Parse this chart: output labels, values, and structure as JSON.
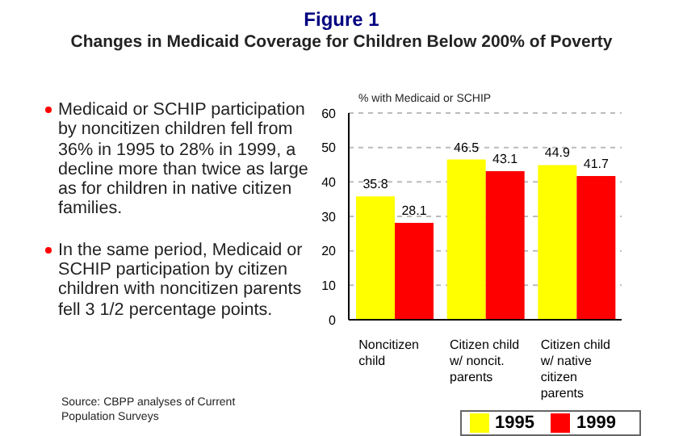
{
  "chart_data": {
    "type": "bar",
    "title": "Figure 1",
    "subtitle": "Changes in Medicaid Coverage for Children Below 200% of Poverty",
    "ylabel": "% with Medicaid or SCHIP",
    "categories": [
      "Noncitizen child",
      "Citizen child w/ noncit. parents",
      "Citizen child w/ native citizen parents"
    ],
    "series": [
      {
        "name": "1995",
        "color": "#ffff00",
        "values": [
          35.8,
          46.5,
          44.9
        ]
      },
      {
        "name": "1999",
        "color": "#ff0000",
        "values": [
          28.1,
          43.1,
          41.7
        ]
      }
    ],
    "ylim": [
      0,
      60
    ],
    "yticks": [
      0,
      10,
      20,
      30,
      40,
      50,
      60
    ],
    "grid": "y",
    "legend": "bottom",
    "data_labels": true,
    "annotations": [
      "Medicaid or SCHIP participation by noncitizen children fell from 36% in 1995 to 28% in 1999, a decline more than twice as large as for children in native citizen families.",
      "In the same period, Medicaid or SCHIP participation by citizen children with noncitizen parents fell 3 1/2 percentage points.",
      "Source: CBPP analyses of Current Population Surveys"
    ]
  }
}
